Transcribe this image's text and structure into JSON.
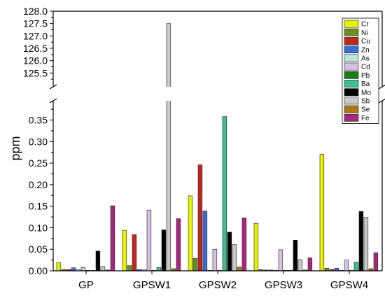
{
  "chart_data": {
    "type": "bar",
    "title": "",
    "xlabel": "",
    "ylabel": "ppm",
    "axis_break": {
      "lower_range": [
        0,
        0.385
      ],
      "upper_range": [
        125.0,
        128.0
      ]
    },
    "upper_ticks": [
      "125.5",
      "126.0",
      "126.5",
      "127.0",
      "127.5",
      "128.0"
    ],
    "lower_ticks": [
      "0.00",
      "0.05",
      "0.10",
      "0.15",
      "0.20",
      "0.25",
      "0.30",
      "0.35"
    ],
    "grid": false,
    "legend_position": "top-right",
    "categories": [
      "GP",
      "GPSW1",
      "GPSW2",
      "GPSW3",
      "GPSW4"
    ],
    "series": [
      {
        "name": "Cr",
        "color": "#e6f200",
        "values": [
          0.019,
          0.094,
          0.174,
          0.11,
          0.271
        ]
      },
      {
        "name": "Ni",
        "color": "#6b8e23",
        "values": [
          0.003,
          0.012,
          0.029,
          0.003,
          0.006
        ]
      },
      {
        "name": "Cu",
        "color": "#c0281e",
        "values": [
          0.003,
          0.084,
          0.246,
          0.002,
          0.003
        ]
      },
      {
        "name": "Zn",
        "color": "#3a6fd8",
        "values": [
          0.007,
          0.003,
          0.139,
          0.002,
          0.006
        ]
      },
      {
        "name": "As",
        "color": "#bde3e3",
        "values": [
          0.003,
          0.003,
          0.001,
          0.001,
          0.001
        ]
      },
      {
        "name": "Cd",
        "color": "#d8bfe4",
        "values": [
          0.008,
          0.141,
          0.05,
          0.049,
          0.025
        ]
      },
      {
        "name": "Pb",
        "color": "#1a7a1a",
        "values": [
          0.001,
          0.001,
          0.001,
          0.001,
          0.001
        ]
      },
      {
        "name": "Ba",
        "color": "#3fbf8f",
        "values": [
          0.001,
          0.008,
          0.358,
          0.001,
          0.02
        ]
      },
      {
        "name": "Mo",
        "color": "#000000",
        "values": [
          0.046,
          0.095,
          0.09,
          0.071,
          0.138
        ]
      },
      {
        "name": "Sb",
        "color": "#c8c8c8",
        "values": [
          0.01,
          127.5,
          0.061,
          0.026,
          0.124
        ]
      },
      {
        "name": "Se",
        "color": "#a87a14",
        "values": [
          0.002,
          0.005,
          0.009,
          0.002,
          0.005
        ]
      },
      {
        "name": "Fe",
        "color": "#a8287e",
        "values": [
          0.151,
          0.121,
          0.123,
          0.03,
          0.042
        ]
      }
    ]
  }
}
